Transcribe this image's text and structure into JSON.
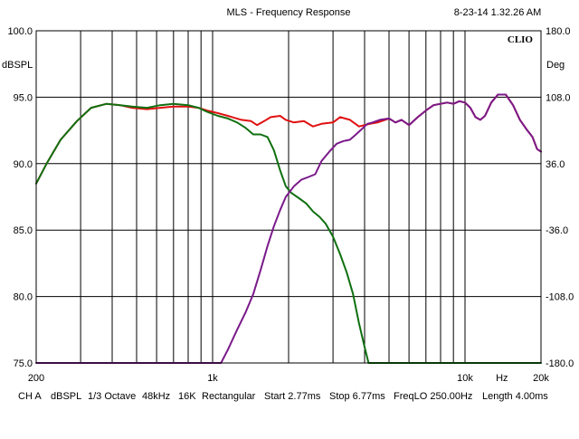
{
  "header": {
    "title": "MLS - Frequency Response",
    "timestamp": "8-23-14 1.32.26 AM",
    "brand": "CLIO"
  },
  "footer": {
    "channel": "CH A",
    "unit": "dBSPL",
    "smoothing": "1/3 Octave",
    "sample_rate": "48kHz",
    "size": "16K",
    "window": "Rectangular",
    "start": "Start 2.77ms",
    "stop": "Stop 6.77ms",
    "freq_lo": "FreqLO 250.00Hz",
    "length": "Length 4.00ms"
  },
  "chart_data": {
    "type": "line",
    "title": "MLS - Frequency Response",
    "xlabel": "Hz",
    "ylabel": "dBSPL",
    "y2label": "Deg",
    "x_scale": "log",
    "xlim": [
      200,
      20000
    ],
    "ylim": [
      75,
      100
    ],
    "y2lim": [
      -180,
      180
    ],
    "grid": true,
    "x_tick_labels": [
      {
        "value": 200,
        "label": "200"
      },
      {
        "value": 1000,
        "label": "1k"
      },
      {
        "value": 10000,
        "label": "10k"
      },
      {
        "value": 14000,
        "label": "Hz"
      },
      {
        "value": 20000,
        "label": "20k"
      }
    ],
    "y_ticks": [
      {
        "value": 100,
        "label": "100.0"
      },
      {
        "value": 95,
        "label": "95.0"
      },
      {
        "value": 90,
        "label": "90.0"
      },
      {
        "value": 85,
        "label": "85.0"
      },
      {
        "value": 80,
        "label": "80.0"
      },
      {
        "value": 75,
        "label": "75.0"
      }
    ],
    "y2_ticks": [
      {
        "value": 180,
        "label": "180.0"
      },
      {
        "value": 108,
        "label": "108.0"
      },
      {
        "value": 36,
        "label": "36.0"
      },
      {
        "value": -36,
        "label": "-36.0"
      },
      {
        "value": -108,
        "label": "-108.0"
      },
      {
        "value": -180,
        "label": "-180.0"
      }
    ],
    "series": [
      {
        "color": "#e01010",
        "points": [
          [
            200,
            88.5
          ],
          [
            220,
            90.0
          ],
          [
            250,
            91.8
          ],
          [
            290,
            93.2
          ],
          [
            330,
            94.2
          ],
          [
            380,
            94.5
          ],
          [
            430,
            94.4
          ],
          [
            480,
            94.2
          ],
          [
            550,
            94.1
          ],
          [
            620,
            94.2
          ],
          [
            700,
            94.3
          ],
          [
            800,
            94.3
          ],
          [
            880,
            94.2
          ],
          [
            950,
            94.0
          ],
          [
            1050,
            93.8
          ],
          [
            1150,
            93.6
          ],
          [
            1300,
            93.3
          ],
          [
            1420,
            93.2
          ],
          [
            1500,
            92.9
          ],
          [
            1600,
            93.2
          ],
          [
            1700,
            93.5
          ],
          [
            1850,
            93.6
          ],
          [
            1950,
            93.3
          ],
          [
            2100,
            93.1
          ],
          [
            2300,
            93.2
          ],
          [
            2500,
            92.8
          ],
          [
            2700,
            93.0
          ],
          [
            3000,
            93.1
          ],
          [
            3200,
            93.5
          ],
          [
            3500,
            93.3
          ],
          [
            3800,
            92.8
          ],
          [
            4200,
            93.0
          ],
          [
            4500,
            93.1
          ],
          [
            5000,
            93.4
          ],
          [
            5300,
            93.1
          ],
          [
            5600,
            93.3
          ],
          [
            6000,
            92.9
          ],
          [
            6500,
            93.5
          ],
          [
            7000,
            94.0
          ],
          [
            7500,
            94.4
          ],
          [
            8000,
            94.5
          ],
          [
            8500,
            94.6
          ],
          [
            9000,
            94.5
          ],
          [
            9500,
            94.7
          ],
          [
            10000,
            94.6
          ],
          [
            10500,
            94.2
          ],
          [
            11000,
            93.5
          ],
          [
            11500,
            93.3
          ],
          [
            12000,
            93.6
          ],
          [
            12700,
            94.6
          ],
          [
            13500,
            95.2
          ],
          [
            14500,
            95.2
          ],
          [
            15500,
            94.4
          ],
          [
            16500,
            93.3
          ],
          [
            17500,
            92.6
          ],
          [
            18500,
            92.0
          ],
          [
            19300,
            91.1
          ],
          [
            20000,
            90.9
          ]
        ]
      },
      {
        "color": "#107010",
        "points": [
          [
            200,
            88.5
          ],
          [
            220,
            90.0
          ],
          [
            250,
            91.8
          ],
          [
            290,
            93.2
          ],
          [
            330,
            94.2
          ],
          [
            380,
            94.5
          ],
          [
            430,
            94.4
          ],
          [
            480,
            94.3
          ],
          [
            550,
            94.2
          ],
          [
            620,
            94.4
          ],
          [
            700,
            94.5
          ],
          [
            800,
            94.4
          ],
          [
            880,
            94.2
          ],
          [
            950,
            93.9
          ],
          [
            1050,
            93.6
          ],
          [
            1150,
            93.4
          ],
          [
            1250,
            93.1
          ],
          [
            1350,
            92.7
          ],
          [
            1450,
            92.2
          ],
          [
            1550,
            92.2
          ],
          [
            1650,
            92.0
          ],
          [
            1750,
            91.0
          ],
          [
            1850,
            89.5
          ],
          [
            1950,
            88.3
          ],
          [
            2050,
            87.8
          ],
          [
            2200,
            87.4
          ],
          [
            2350,
            87.0
          ],
          [
            2500,
            86.4
          ],
          [
            2650,
            86.0
          ],
          [
            2800,
            85.5
          ],
          [
            3000,
            84.5
          ],
          [
            3200,
            83.2
          ],
          [
            3400,
            81.8
          ],
          [
            3600,
            80.2
          ],
          [
            3800,
            78.0
          ],
          [
            4000,
            76.2
          ],
          [
            4150,
            75.0
          ],
          [
            4400,
            75.0
          ],
          [
            5000,
            75.0
          ],
          [
            7000,
            75.0
          ],
          [
            10000,
            75.0
          ],
          [
            14000,
            75.0
          ],
          [
            20000,
            75.0
          ]
        ]
      },
      {
        "color": "#7a1a8a",
        "points": [
          [
            200,
            75.0
          ],
          [
            500,
            75.0
          ],
          [
            800,
            75.0
          ],
          [
            1080,
            75.0
          ],
          [
            1150,
            76.0
          ],
          [
            1250,
            77.5
          ],
          [
            1350,
            78.8
          ],
          [
            1450,
            80.2
          ],
          [
            1550,
            82.0
          ],
          [
            1650,
            83.8
          ],
          [
            1750,
            85.3
          ],
          [
            1850,
            86.5
          ],
          [
            1950,
            87.5
          ],
          [
            2100,
            88.3
          ],
          [
            2250,
            88.8
          ],
          [
            2400,
            89.0
          ],
          [
            2550,
            89.2
          ],
          [
            2700,
            90.2
          ],
          [
            2900,
            90.9
          ],
          [
            3100,
            91.5
          ],
          [
            3300,
            91.7
          ],
          [
            3500,
            91.8
          ],
          [
            3700,
            92.2
          ],
          [
            3900,
            92.6
          ],
          [
            4100,
            93.0
          ],
          [
            4300,
            93.1
          ],
          [
            4600,
            93.3
          ],
          [
            5000,
            93.4
          ],
          [
            5300,
            93.1
          ],
          [
            5600,
            93.3
          ],
          [
            6000,
            92.9
          ],
          [
            6500,
            93.5
          ],
          [
            7000,
            94.0
          ],
          [
            7500,
            94.4
          ],
          [
            8000,
            94.5
          ],
          [
            8500,
            94.6
          ],
          [
            9000,
            94.5
          ],
          [
            9500,
            94.7
          ],
          [
            10000,
            94.6
          ],
          [
            10500,
            94.2
          ],
          [
            11000,
            93.5
          ],
          [
            11500,
            93.3
          ],
          [
            12000,
            93.6
          ],
          [
            12700,
            94.6
          ],
          [
            13500,
            95.2
          ],
          [
            14500,
            95.2
          ],
          [
            15500,
            94.4
          ],
          [
            16500,
            93.3
          ],
          [
            17500,
            92.6
          ],
          [
            18500,
            92.0
          ],
          [
            19300,
            91.1
          ],
          [
            20000,
            90.9
          ]
        ]
      }
    ]
  }
}
